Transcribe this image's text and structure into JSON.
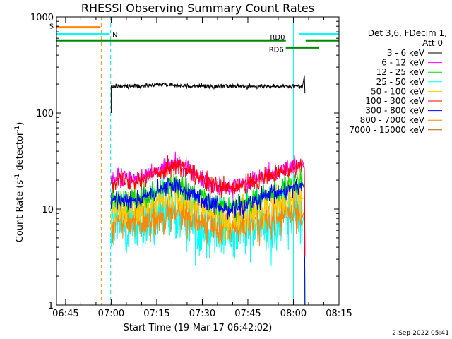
{
  "chart_data": {
    "type": "line",
    "title": "RHESSI Observing Summary Count Rates",
    "xlabel": "Start Time (19-Mar-17 06:42:02)",
    "ylabel_main": "Count Rate (s",
    "ylabel_sup1": "-1",
    "ylabel_mid": " detector",
    "ylabel_sup2": "-1",
    "ylabel_end": ")",
    "yscale": "log",
    "ylim": [
      1,
      1000
    ],
    "xlim_minutes": [
      6.0,
      99.0
    ],
    "x_ticks": [
      {
        "label": "06:45",
        "minute": 9
      },
      {
        "label": "07:00",
        "minute": 24
      },
      {
        "label": "07:15",
        "minute": 39
      },
      {
        "label": "07:30",
        "minute": 54
      },
      {
        "label": "07:45",
        "minute": 69
      },
      {
        "label": "08:00",
        "minute": 84
      },
      {
        "label": "08:15",
        "minute": 99
      }
    ],
    "y_ticks": [
      {
        "label": "1000",
        "value": 1000
      },
      {
        "label": "100",
        "value": 100
      },
      {
        "label": "10",
        "value": 10
      },
      {
        "label": "1",
        "value": 1
      }
    ],
    "legend_header": [
      "Det 3,6, FDecim 1,",
      "Att 0"
    ],
    "series": [
      {
        "name": "3 - 6 keV",
        "color": "#000000",
        "base": 190,
        "noise": 0.04,
        "hump": 0.08
      },
      {
        "name": "6 - 12 keV",
        "color": "#ff00ff",
        "base": 21,
        "noise": 0.09,
        "hump": 0.15
      },
      {
        "name": "12 - 25 keV",
        "color": "#00dd00",
        "base": 13,
        "noise": 0.12,
        "hump": 0.15
      },
      {
        "name": "25 - 50 keV",
        "color": "#00ffff",
        "base": 7,
        "noise": 0.35,
        "hump": 0.1
      },
      {
        "name": "50 - 100 keV",
        "color": "#ffcc00",
        "base": 10,
        "noise": 0.18,
        "hump": 0.15
      },
      {
        "name": "100 - 300 keV",
        "color": "#ff0000",
        "base": 20,
        "noise": 0.1,
        "hump": 0.15
      },
      {
        "name": "300 - 800 keV",
        "color": "#0000ff",
        "base": 12.5,
        "noise": 0.1,
        "hump": 0.15
      },
      {
        "name": "800 - 7000 keV",
        "color": "#ff8800",
        "base": 7.5,
        "noise": 0.2,
        "hump": 0.1
      },
      {
        "name": "7000 - 15000 keV",
        "color": "#aa6600",
        "base": null,
        "noise": 0,
        "hump": 0
      }
    ],
    "data_window_minutes": [
      24.0,
      87.0
    ],
    "flags": [
      {
        "label": "S",
        "color": "#ff8800",
        "segments": [
          [
            6.0,
            20.5
          ]
        ],
        "value": 780
      },
      {
        "label": "N",
        "color": "#00ffff",
        "segments": [
          [
            6.0,
            23.5
          ],
          [
            86.0,
            99.0
          ]
        ],
        "value": 660
      },
      {
        "label": "RD0",
        "color": "#008800",
        "segments": [
          [
            6.0,
            81.5
          ],
          [
            88.0,
            99.0
          ]
        ],
        "value": 570
      },
      {
        "label": "RD6",
        "color": "#008800",
        "segments": [
          [
            81.5,
            92.5
          ]
        ],
        "value": 480
      }
    ],
    "vertical_lines": [
      {
        "minute": 6.0,
        "color": "#00ffff",
        "style": "solid"
      },
      {
        "minute": 20.8,
        "color": "#ff8800",
        "style": "dashed"
      },
      {
        "minute": 23.8,
        "color": "#00ffff",
        "style": "dashed"
      },
      {
        "minute": 84.0,
        "color": "#00ffff",
        "style": "solid"
      },
      {
        "minute": 99.0,
        "color": "#00ffff",
        "style": "dashed"
      }
    ],
    "timestamp": "2-Sep-2022 05:41"
  }
}
